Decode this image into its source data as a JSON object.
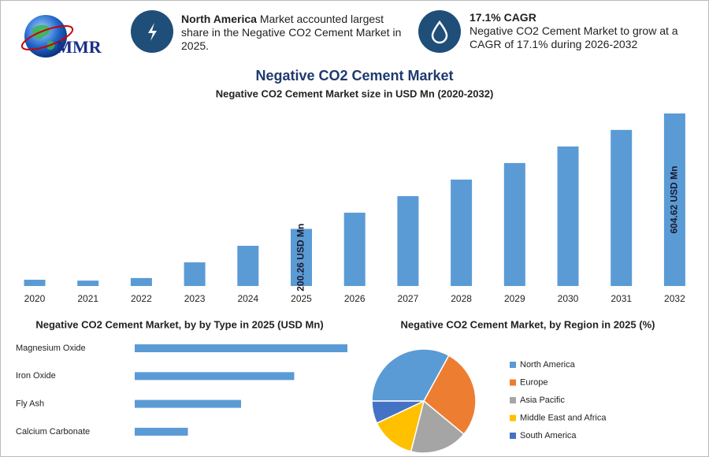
{
  "header": {
    "logo": "MMR",
    "box1": {
      "bold": "North America",
      "text": "Market accounted largest share in the Negative CO2 Cement Market in 2025."
    },
    "box2": {
      "title": "17.1% CAGR",
      "text": "Negative CO2 Cement Market to grow at a CAGR of 17.1% during 2026-2032"
    }
  },
  "title": "Negative CO2 Cement Market",
  "chart_data": [
    {
      "type": "bar",
      "title": "Negative CO2 Cement Market size in USD Mn (2020-2032)",
      "categories": [
        "2020",
        "2021",
        "2022",
        "2023",
        "2024",
        "2025",
        "2026",
        "2027",
        "2028",
        "2029",
        "2030",
        "2031",
        "2032"
      ],
      "values": [
        22,
        19,
        28,
        83,
        141,
        200.26,
        257,
        315,
        373,
        431,
        489,
        547,
        604.62
      ],
      "value_labels": [
        null,
        null,
        null,
        null,
        null,
        "200.26 USD Mn",
        null,
        null,
        null,
        null,
        null,
        null,
        "604.62 USD Mn"
      ],
      "color": "#5b9bd5"
    },
    {
      "type": "hbar",
      "title": "Negative CO2 Cement Market, by by Type in 2025 (USD Mn)",
      "categories": [
        "Magnesium Oxide",
        "Iron Oxide",
        "Fly Ash",
        "Calcium Carbonate"
      ],
      "values": [
        80,
        60,
        40,
        20
      ],
      "color": "#5b9bd5"
    },
    {
      "type": "pie",
      "title": "Negative CO2 Cement Market, by Region in 2025 (%)",
      "categories": [
        "North America",
        "Europe",
        "Asia Pacific",
        "Middle East and Africa",
        "South America"
      ],
      "values": [
        33,
        28,
        18,
        14,
        7
      ],
      "colors": [
        "#5b9bd5",
        "#ed7d31",
        "#a5a5a5",
        "#ffc000",
        "#4472c4"
      ]
    }
  ]
}
